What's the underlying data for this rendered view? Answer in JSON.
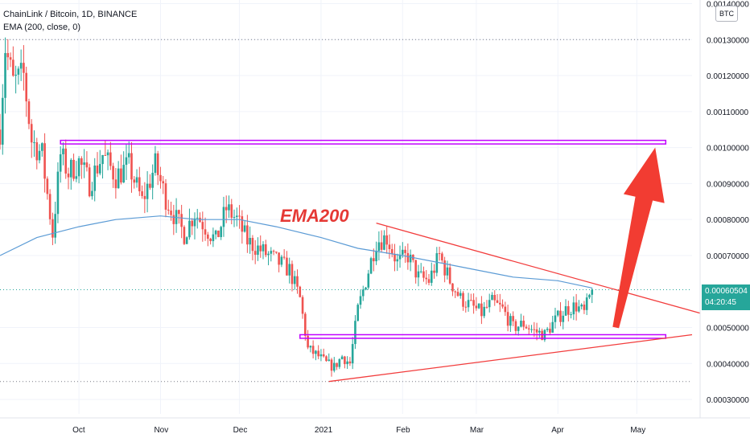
{
  "header": {
    "title": "ChainLink / Bitcoin, 1D, BINANCE",
    "indicator": "EMA (200, close, 0)"
  },
  "currency": "BTC",
  "annotation": "EMA200",
  "current_price": {
    "value": "0.00060504",
    "countdown": "04:20:45",
    "color": "#26a69a"
  },
  "colors": {
    "up": "#26a69a",
    "down": "#ef5350",
    "ema": "#5b9bd5",
    "zone": "#c000ff",
    "trend": "#f23c3c",
    "arrow": "#f23c32"
  },
  "chart_data": {
    "type": "candlestick",
    "symbol": "LINK/BTC",
    "timeframe": "1D",
    "y_axis_labels": [
      "0.00140000",
      "0.00130000",
      "0.00120000",
      "0.00110000",
      "0.00100000",
      "0.00090000",
      "0.00080000",
      "0.00070000",
      "0.00060504",
      "0.00050000",
      "0.00040000",
      "0.00030000"
    ],
    "x_axis_labels": [
      "Oct",
      "Nov",
      "Dec",
      "2021",
      "Feb",
      "Mar",
      "Apr",
      "May"
    ],
    "ylim": [
      0.00026,
      0.00141
    ],
    "x_range": [
      "2020-09-01",
      "2021-05-22"
    ],
    "horizontal_dotted_levels": [
      0.0013,
      0.00035
    ],
    "support_zone": [
      0.00047,
      0.00048
    ],
    "resistance_zone": [
      0.00101,
      0.00102
    ],
    "zone_extent": [
      "2020-09-24",
      "2021-05-12"
    ],
    "triangle_upper": {
      "from": [
        "2021-01-22",
        0.00079
      ],
      "to": [
        "2021-05-25",
        0.00054
      ]
    },
    "triangle_lower": {
      "from": [
        "2021-01-04",
        0.00035
      ],
      "to": [
        "2021-05-22",
        0.00048
      ]
    },
    "arrow": {
      "from": [
        "2021-04-23",
        0.0005
      ],
      "to": [
        "2021-05-08",
        0.001
      ]
    },
    "ema_series": [
      [
        "2020-09-01",
        0.0007
      ],
      [
        "2020-09-15",
        0.00075
      ],
      [
        "2020-10-01",
        0.00078
      ],
      [
        "2020-10-15",
        0.0008
      ],
      [
        "2020-11-01",
        0.00081
      ],
      [
        "2020-11-15",
        0.0008
      ],
      [
        "2020-12-01",
        0.0008
      ],
      [
        "2020-12-15",
        0.00078
      ],
      [
        "2021-01-01",
        0.00075
      ],
      [
        "2021-01-15",
        0.00072
      ],
      [
        "2021-02-01",
        0.0007
      ],
      [
        "2021-02-15",
        0.00068
      ],
      [
        "2021-03-01",
        0.00066
      ],
      [
        "2021-03-15",
        0.00064
      ],
      [
        "2021-04-01",
        0.00063
      ],
      [
        "2021-04-14",
        0.00061
      ]
    ],
    "price_path": [
      [
        "2020-09-01",
        0.00105
      ],
      [
        "2020-09-03",
        0.00128
      ],
      [
        "2020-09-06",
        0.00118
      ],
      [
        "2020-09-10",
        0.0012
      ],
      [
        "2020-09-13",
        0.00102
      ],
      [
        "2020-09-17",
        0.00098
      ],
      [
        "2020-09-21",
        0.00076
      ],
      [
        "2020-09-24",
        0.00098
      ],
      [
        "2020-09-27",
        0.00093
      ],
      [
        "2020-10-01",
        0.00096
      ],
      [
        "2020-10-05",
        0.0009
      ],
      [
        "2020-10-10",
        0.00098
      ],
      [
        "2020-10-15",
        0.00092
      ],
      [
        "2020-10-20",
        0.00095
      ],
      [
        "2020-10-25",
        0.00085
      ],
      [
        "2020-10-30",
        0.00095
      ],
      [
        "2020-11-03",
        0.00086
      ],
      [
        "2020-11-07",
        0.0008
      ],
      [
        "2020-11-10",
        0.00076
      ],
      [
        "2020-11-14",
        0.00082
      ],
      [
        "2020-11-18",
        0.00078
      ],
      [
        "2020-11-22",
        0.00074
      ],
      [
        "2020-11-26",
        0.00083
      ],
      [
        "2020-11-30",
        0.0008
      ],
      [
        "2020-12-04",
        0.00074
      ],
      [
        "2020-12-08",
        0.00072
      ],
      [
        "2020-12-12",
        0.0007
      ],
      [
        "2020-12-16",
        0.00068
      ],
      [
        "2020-12-20",
        0.00066
      ],
      [
        "2020-12-24",
        0.00058
      ],
      [
        "2020-12-27",
        0.00044
      ],
      [
        "2020-12-31",
        0.00042
      ],
      [
        "2021-01-03",
        0.0004
      ],
      [
        "2021-01-06",
        0.00039
      ],
      [
        "2021-01-09",
        0.00042
      ],
      [
        "2021-01-12",
        0.0004
      ],
      [
        "2021-01-15",
        0.00055
      ],
      [
        "2021-01-18",
        0.00063
      ],
      [
        "2021-01-22",
        0.00074
      ],
      [
        "2021-01-26",
        0.00075
      ],
      [
        "2021-01-30",
        0.00068
      ],
      [
        "2021-02-03",
        0.0007
      ],
      [
        "2021-02-07",
        0.00064
      ],
      [
        "2021-02-11",
        0.00063
      ],
      [
        "2021-02-15",
        0.0007
      ],
      [
        "2021-02-19",
        0.00063
      ],
      [
        "2021-02-23",
        0.00058
      ],
      [
        "2021-02-27",
        0.00056
      ],
      [
        "2021-03-03",
        0.00054
      ],
      [
        "2021-03-07",
        0.00057
      ],
      [
        "2021-03-11",
        0.00055
      ],
      [
        "2021-03-15",
        0.0005
      ],
      [
        "2021-03-19",
        0.00051
      ],
      [
        "2021-03-23",
        0.00049
      ],
      [
        "2021-03-27",
        0.00048
      ],
      [
        "2021-03-31",
        0.00052
      ],
      [
        "2021-04-04",
        0.00055
      ],
      [
        "2021-04-08",
        0.00056
      ],
      [
        "2021-04-11",
        0.00054
      ],
      [
        "2021-04-14",
        0.00060504
      ]
    ]
  }
}
